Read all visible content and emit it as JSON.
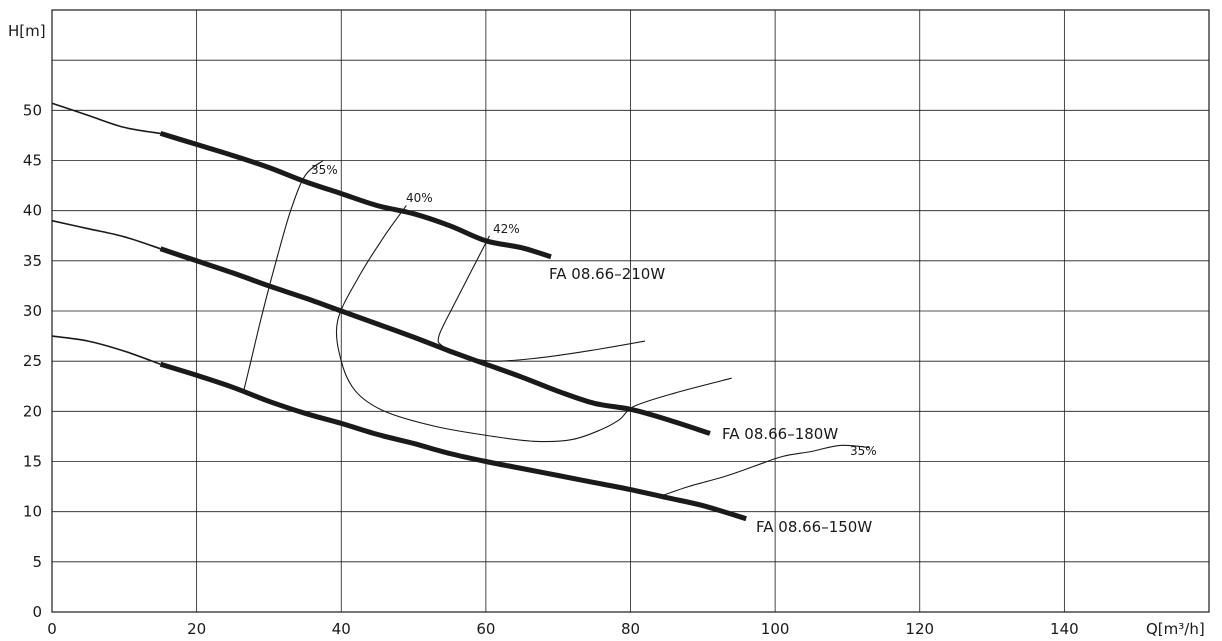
{
  "chart_data": {
    "type": "line",
    "title": "",
    "xlabel": "Q[m³/h]",
    "ylabel": "H[m]",
    "xlim": [
      0,
      160
    ],
    "ylim": [
      0,
      60
    ],
    "x_ticks": [
      0,
      20,
      40,
      60,
      80,
      100,
      120,
      140
    ],
    "y_ticks": [
      0,
      5,
      10,
      15,
      20,
      25,
      30,
      35,
      40,
      45,
      50
    ],
    "grid": true,
    "series": [
      {
        "name": "FA 08.66–210W",
        "x": [
          0,
          5,
          10,
          15,
          20,
          25,
          30,
          35,
          40,
          45,
          50,
          55,
          60,
          65,
          69
        ],
        "y": [
          50.7,
          49.5,
          48.3,
          47.7,
          46.6,
          45.5,
          44.3,
          42.9,
          41.7,
          40.5,
          39.7,
          38.5,
          37.0,
          36.3,
          35.4
        ],
        "operating_range_start_x": 15
      },
      {
        "name": "FA 08.66–180W",
        "x": [
          0,
          5,
          10,
          15,
          20,
          25,
          30,
          35,
          40,
          45,
          50,
          55,
          60,
          65,
          70,
          75,
          80,
          85,
          91
        ],
        "y": [
          39.0,
          38.2,
          37.4,
          36.2,
          35.0,
          33.8,
          32.5,
          31.3,
          30.0,
          28.7,
          27.4,
          26.0,
          24.7,
          23.4,
          22.0,
          20.8,
          20.2,
          19.2,
          17.8
        ],
        "operating_range_start_x": 15
      },
      {
        "name": "FA 08.66–150W",
        "x": [
          0,
          5,
          10,
          15,
          20,
          25,
          30,
          35,
          40,
          45,
          50,
          55,
          60,
          65,
          70,
          75,
          80,
          85,
          90,
          96
        ],
        "y": [
          27.5,
          27.0,
          26.0,
          24.7,
          23.6,
          22.4,
          21.0,
          19.8,
          18.8,
          17.7,
          16.8,
          15.8,
          15.0,
          14.3,
          13.6,
          12.9,
          12.2,
          11.4,
          10.6,
          9.3
        ],
        "operating_range_start_x": 15
      }
    ],
    "efficiency_curves": [
      {
        "label": "35%",
        "x": [
          26.5,
          27.5,
          29,
          31,
          33,
          35,
          37.5
        ],
        "y": [
          22,
          25,
          29.5,
          35,
          40,
          43.5,
          45
        ]
      },
      {
        "label": "40%",
        "x": [
          49,
          46,
          42.5,
          39.5,
          40,
          42,
          46,
          53,
          61,
          67,
          72,
          76,
          78.5,
          80.5,
          86,
          94
        ],
        "y": [
          40.5,
          37.5,
          33.5,
          29,
          25,
          22,
          20,
          18.5,
          17.5,
          17,
          17.2,
          18.2,
          19.2,
          20.5,
          21.8,
          23.3
        ]
      },
      {
        "label": "42%",
        "x": [
          60.5,
          58,
          55.5,
          53.5,
          54,
          57,
          61,
          67,
          74,
          82
        ],
        "y": [
          37.5,
          34,
          30.5,
          27.5,
          26.5,
          25.5,
          25,
          25.3,
          26,
          27
        ]
      },
      {
        "label": "35%",
        "x": [
          84,
          88,
          93,
          97,
          101,
          105,
          109,
          113
        ],
        "y": [
          11.5,
          12.5,
          13.5,
          14.5,
          15.5,
          16,
          16.6,
          16.4
        ]
      }
    ]
  }
}
